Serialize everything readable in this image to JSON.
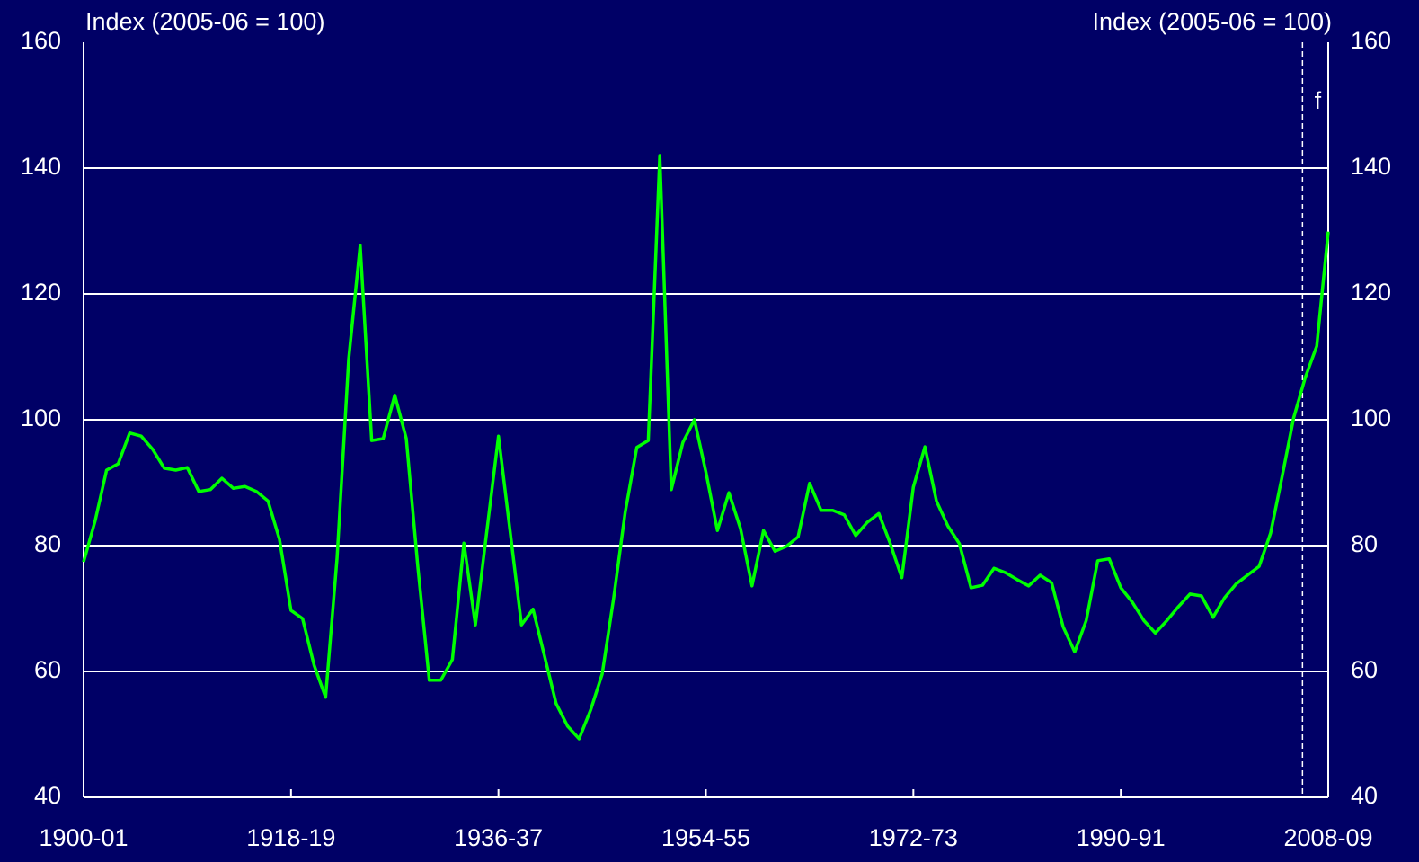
{
  "chart_data": {
    "type": "line",
    "y_axis_label": "Index (2005-06 = 100)",
    "y2_axis_label": "Index (2005-06 = 100)",
    "categories": [
      "1900-01",
      null,
      null,
      null,
      null,
      null,
      null,
      null,
      null,
      null,
      null,
      null,
      null,
      null,
      null,
      null,
      null,
      null,
      "1918-19",
      null,
      null,
      null,
      null,
      null,
      null,
      null,
      null,
      null,
      null,
      null,
      null,
      null,
      null,
      null,
      null,
      null,
      "1936-37",
      null,
      null,
      null,
      null,
      null,
      null,
      null,
      null,
      null,
      null,
      null,
      null,
      null,
      null,
      null,
      null,
      null,
      "1954-55",
      null,
      null,
      null,
      null,
      null,
      null,
      null,
      null,
      null,
      null,
      null,
      null,
      null,
      null,
      null,
      null,
      null,
      "1972-73",
      null,
      null,
      null,
      null,
      null,
      null,
      null,
      null,
      null,
      null,
      null,
      null,
      null,
      null,
      null,
      null,
      null,
      "1990-91",
      null,
      null,
      null,
      null,
      null,
      null,
      null,
      null,
      null,
      null,
      null,
      null,
      null,
      null,
      null,
      null,
      null,
      "2008-09"
    ],
    "series": [
      {
        "name": "Index",
        "color": "#00ff00",
        "values": [
          77.4,
          83.9,
          92,
          93,
          97.9,
          97.4,
          95.3,
          92.3,
          92,
          92.4,
          88.6,
          88.9,
          90.7,
          89.1,
          89.4,
          88.6,
          87.1,
          81,
          69.7,
          68.4,
          61,
          55.9,
          78.1,
          109.6,
          127.7,
          96.7,
          97,
          103.9,
          97,
          76.7,
          58.6,
          58.6,
          61.9,
          80.4,
          67.4,
          82.4,
          97.4,
          82.4,
          67.4,
          69.9,
          62.4,
          54.9,
          51.3,
          49.3,
          53.9,
          59.6,
          71.7,
          85.3,
          95.6,
          96.7,
          142,
          88.9,
          96.4,
          100,
          91.7,
          82.4,
          88.4,
          82.7,
          73.6,
          82.4,
          79.1,
          79.9,
          81.4,
          89.9,
          85.6,
          85.6,
          84.9,
          81.6,
          83.7,
          85.1,
          80.3,
          74.9,
          89.3,
          95.7,
          87.1,
          83.1,
          80.3,
          73.3,
          73.7,
          76.4,
          75.7,
          74.6,
          73.6,
          75.3,
          74.1,
          67.1,
          63.1,
          68.1,
          77.6,
          77.9,
          73.3,
          71,
          68.1,
          66.1,
          68.1,
          70.3,
          72.3,
          72,
          68.6,
          71.7,
          73.9,
          75.3,
          76.7,
          82,
          91,
          100.3,
          106.7,
          111.7,
          129.9
        ]
      }
    ],
    "ylim": [
      40,
      160
    ],
    "yticks": [
      40,
      60,
      80,
      100,
      120,
      140,
      160
    ],
    "y2lim": [
      40,
      160
    ],
    "y2ticks": [
      40,
      60,
      80,
      100,
      120,
      140,
      160
    ],
    "grid": true,
    "annotations": [
      {
        "text": "f",
        "at_index": 106
      }
    ]
  }
}
